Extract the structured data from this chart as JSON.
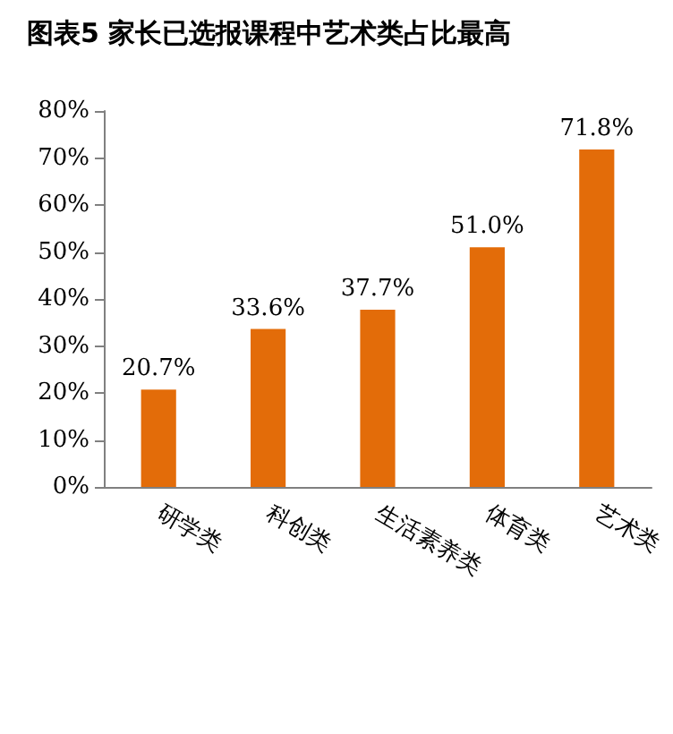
{
  "chart_data": {
    "type": "bar",
    "title": "图表5 家长已选报课程中艺术类占比最高",
    "categories": [
      "研学类",
      "科创类",
      "生活素养类",
      "体育类",
      "艺术类"
    ],
    "values": [
      20.7,
      33.6,
      37.7,
      51.0,
      71.8
    ],
    "value_labels": [
      "20.7%",
      "33.6%",
      "37.7%",
      "51.0%",
      "71.8%"
    ],
    "color": "#e36c09",
    "ylim": [
      0,
      80
    ],
    "yticks": [
      {
        "value": 0,
        "label": "0%"
      },
      {
        "value": 10,
        "label": "10%"
      },
      {
        "value": 20,
        "label": "20%"
      },
      {
        "value": 30,
        "label": "30%"
      },
      {
        "value": 40,
        "label": "40%"
      },
      {
        "value": 50,
        "label": "50%"
      },
      {
        "value": 60,
        "label": "60%"
      },
      {
        "value": 70,
        "label": "70%"
      },
      {
        "value": 80,
        "label": "80%"
      }
    ],
    "grid": false
  }
}
